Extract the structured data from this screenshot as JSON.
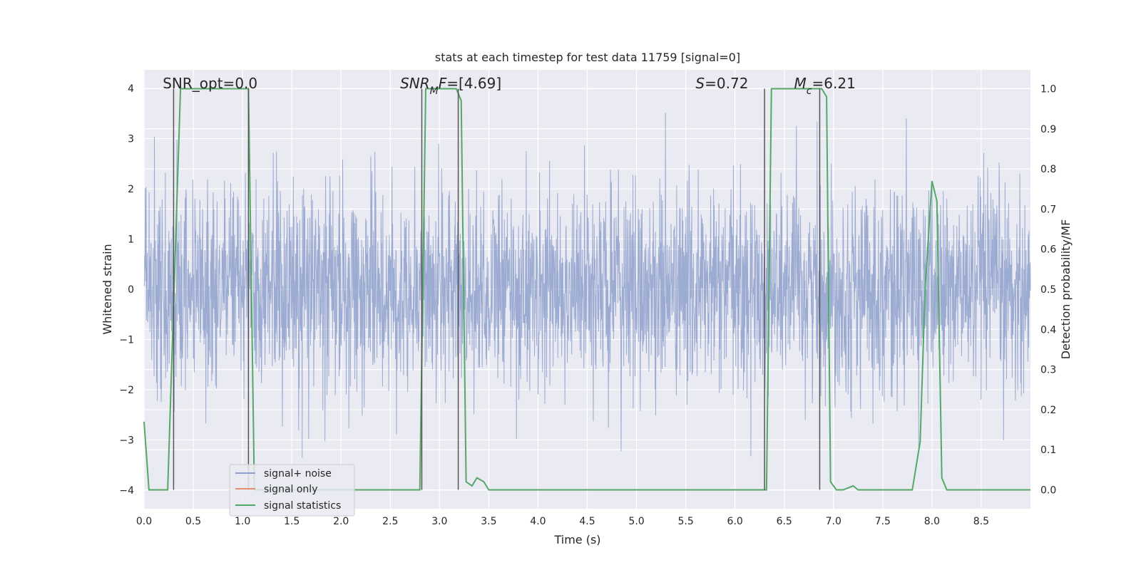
{
  "chart_data": {
    "type": "line",
    "title": "stats at each timestep for test data 11759 [signal=0]",
    "xlabel": "Time (s)",
    "ylabel_left": "Whitened strain",
    "ylabel_right": "Detection probability/MF",
    "xlim": [
      0.0,
      9.0
    ],
    "ylim_left": [
      -4.37,
      4.37
    ],
    "ylim_right": [
      -0.047,
      1.047
    ],
    "x_ticks": [
      "0.0",
      "0.5",
      "1.0",
      "1.5",
      "2.0",
      "2.5",
      "3.0",
      "3.5",
      "4.0",
      "4.5",
      "5.0",
      "5.5",
      "6.0",
      "6.5",
      "7.0",
      "7.5",
      "8.0",
      "8.5"
    ],
    "y_ticks_left": [
      "4",
      "3",
      "2",
      "1",
      "0",
      "−1",
      "−2",
      "−3",
      "−4"
    ],
    "y_ticks_right": [
      "1.0",
      "0.9",
      "0.8",
      "0.7",
      "0.6",
      "0.5",
      "0.4",
      "0.3",
      "0.2",
      "0.1",
      "0.0"
    ],
    "grid": true,
    "legend_position": "lower-left",
    "annotations": [
      {
        "parts": [
          {
            "t": "SNR_opt=0.0",
            "italic": false
          }
        ],
        "x": 0.19
      },
      {
        "parts": [
          {
            "t": "SNR",
            "italic": true
          },
          {
            "t": "M",
            "italic": true,
            "sub": true
          },
          {
            "t": "F",
            "italic": true
          },
          {
            "t": "=[4.69]",
            "italic": false
          }
        ],
        "x": 2.6
      },
      {
        "parts": [
          {
            "t": "S",
            "italic": true
          },
          {
            "t": "=0.72",
            "italic": false
          }
        ],
        "x": 5.6
      },
      {
        "parts": [
          {
            "t": "M",
            "italic": true
          },
          {
            "t": "c",
            "italic": true,
            "sub": true
          },
          {
            "t": "=6.21",
            "italic": false
          }
        ],
        "x": 6.6
      }
    ],
    "series": [
      {
        "name": "signal+ noise",
        "axis": "left",
        "color": "#8da0cb",
        "description": "noisy whitened strain, approx. amplitude ±2 with spikes to about ±3.5",
        "noise_std": 1.0
      },
      {
        "name": "signal only",
        "axis": "left",
        "color": "#e58e6e",
        "values_x": [
          0.0,
          9.0
        ],
        "values_y": [
          0.0,
          0.0
        ]
      },
      {
        "name": "signal statistics",
        "axis": "right",
        "color": "#55a868",
        "x": [
          0.0,
          0.05,
          0.24,
          0.37,
          1.06,
          1.12,
          2.8,
          2.86,
          3.17,
          3.22,
          3.27,
          3.33,
          3.38,
          3.45,
          3.5,
          3.56,
          6.32,
          6.37,
          6.88,
          6.93,
          6.97,
          7.03,
          7.1,
          7.2,
          7.25,
          7.3,
          7.4,
          7.8,
          7.88,
          7.93,
          8.0,
          8.05,
          8.1,
          8.15,
          8.2,
          9.0
        ],
        "y": [
          0.17,
          0.0,
          0.0,
          1.0,
          1.0,
          0.0,
          0.0,
          1.0,
          1.0,
          0.97,
          0.02,
          0.01,
          0.03,
          0.02,
          0.0,
          0.0,
          0.0,
          1.0,
          1.0,
          0.98,
          0.02,
          0.0,
          0.0,
          0.01,
          0.0,
          0.0,
          0.0,
          0.0,
          0.12,
          0.5,
          0.77,
          0.72,
          0.03,
          0.0,
          0.0,
          0.0
        ]
      }
    ],
    "vlines": [
      {
        "x": 0.3,
        "color": "#555555"
      },
      {
        "x": 1.06,
        "color": "#555555"
      },
      {
        "x": 2.82,
        "color": "#555555"
      },
      {
        "x": 3.19,
        "color": "#555555"
      },
      {
        "x": 6.3,
        "color": "#555555"
      },
      {
        "x": 6.86,
        "color": "#555555"
      }
    ],
    "colors": {
      "plot_background": "#eaeaf2",
      "grid": "#ffffff"
    }
  }
}
